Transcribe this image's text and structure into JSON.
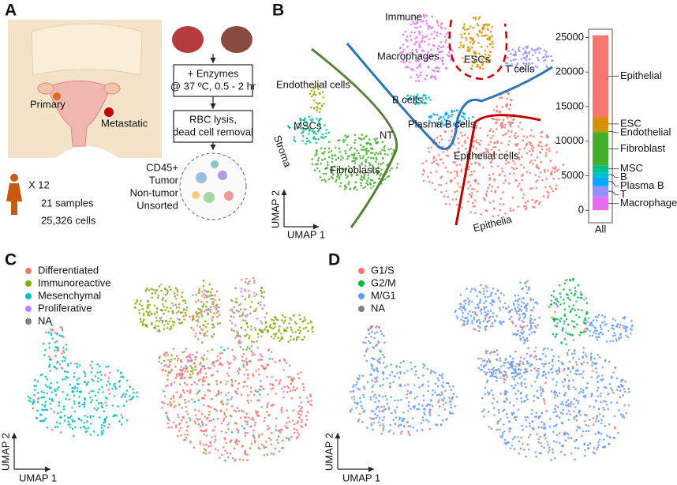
{
  "panels": {
    "a": "A",
    "b": "B",
    "c": "C",
    "d": "D"
  },
  "panel_a": {
    "primary": "Primary",
    "metastatic": "Metastatic",
    "step_1": [
      "+ Enzymes",
      "@ 37 ºC, 0.5 - 2 hr"
    ],
    "step_2": [
      "RBC lysis,",
      "dead cell removal"
    ],
    "patients": "X 12",
    "samples": "21 samples",
    "cells": "25,326 cells",
    "sorts": [
      {
        "label": "CD45+",
        "color": "#2e75b6"
      },
      {
        "label": "Tumor",
        "color": "#2ca02c"
      },
      {
        "label": "Non-tumor",
        "color": "#c00000"
      },
      {
        "label": "Unsorted",
        "color": "#7030a0"
      }
    ]
  },
  "panel_b": {
    "compartments": [
      {
        "label": "Immune",
        "color": "#2e75b6"
      },
      {
        "label": "Stroma",
        "color": "#548235"
      },
      {
        "label": "Epithelia",
        "color": "#c00000"
      }
    ],
    "clusters": [
      "Macrophages",
      "ESCs",
      "T cells",
      "Endothelial cells",
      "B cells",
      "MSCs",
      "Plasma B cells",
      "NT",
      "Epithelial cells",
      "Fibroblasts"
    ],
    "x_label": "UMAP 1",
    "y_label": "UMAP 2"
  },
  "chart_data": {
    "type": "bar",
    "categories": [
      "All"
    ],
    "series": [
      {
        "name": "Macrophage",
        "color": "#e76bf3",
        "values": [
          2000
        ]
      },
      {
        "name": "T",
        "color": "#9590ff",
        "values": [
          1500
        ]
      },
      {
        "name": "Plasma B",
        "color": "#00a9ff",
        "values": [
          1300
        ]
      },
      {
        "name": "B",
        "color": "#00bfc4",
        "values": [
          700
        ]
      },
      {
        "name": "MSC",
        "color": "#00c08b",
        "values": [
          1000
        ]
      },
      {
        "name": "Fibroblast",
        "color": "#43b02a",
        "values": [
          4800
        ]
      },
      {
        "name": "Endothelial",
        "color": "#a3a500",
        "values": [
          200
        ]
      },
      {
        "name": "ESC",
        "color": "#d89000",
        "values": [
          2000
        ]
      },
      {
        "name": "Epithelial",
        "color": "#f8766d",
        "values": [
          11826
        ]
      }
    ],
    "ylim": [
      -1800,
      26200
    ],
    "yticks": [
      0,
      5000,
      10000,
      15000,
      20000,
      25000
    ]
  },
  "panel_c": {
    "legend": [
      {
        "label": "Differentiated",
        "color": "#f8766d"
      },
      {
        "label": "Immunoreactive",
        "color": "#7cae00"
      },
      {
        "label": "Mesenchymal",
        "color": "#00bfc4"
      },
      {
        "label": "Proliferative",
        "color": "#c77cff"
      },
      {
        "label": "NA",
        "color": "#7f7f7f"
      }
    ],
    "x_label": "UMAP 1",
    "y_label": "UMAP 2"
  },
  "panel_d": {
    "legend": [
      {
        "label": "G1/S",
        "color": "#f8766d"
      },
      {
        "label": "G2/M",
        "color": "#00ba38"
      },
      {
        "label": "M/G1",
        "color": "#619cff"
      },
      {
        "label": "NA",
        "color": "#7f7f7f"
      }
    ],
    "x_label": "UMAP 1",
    "y_label": "UMAP 2"
  }
}
